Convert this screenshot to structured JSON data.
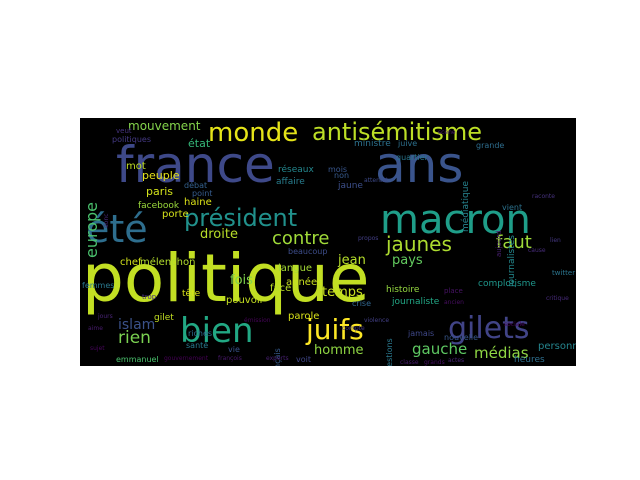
{
  "cloud": {
    "background": "#000000",
    "words": [
      {
        "text": "politique",
        "color": "#c2df23"
      },
      {
        "text": "france",
        "color": "#3e4989"
      },
      {
        "text": "ans",
        "color": "#3a548c"
      },
      {
        "text": "macron",
        "color": "#1f9e89"
      },
      {
        "text": "bien",
        "color": "#22a884"
      },
      {
        "text": "été",
        "color": "#2e6e8e"
      },
      {
        "text": "gilets",
        "color": "#414487"
      },
      {
        "text": "monde",
        "color": "#e5e419"
      },
      {
        "text": "antisémitisme",
        "color": "#bddf26"
      },
      {
        "text": "président",
        "color": "#21918c"
      },
      {
        "text": "juifs",
        "color": "#fde725"
      },
      {
        "text": "jaunes",
        "color": "#addc30"
      },
      {
        "text": "contre",
        "color": "#a0da39"
      },
      {
        "text": "faut",
        "color": "#9fda3a"
      },
      {
        "text": "rien",
        "color": "#7ad151"
      },
      {
        "text": "gauche",
        "color": "#5ec962"
      },
      {
        "text": "médias",
        "color": "#8fd744"
      },
      {
        "text": "europe",
        "color": "#4ac16d"
      },
      {
        "text": "islam",
        "color": "#3b528b"
      },
      {
        "text": "mouvement",
        "color": "#84d44b"
      },
      {
        "text": "droite",
        "color": "#b8de29"
      },
      {
        "text": "temps",
        "color": "#c8e020"
      },
      {
        "text": "homme",
        "color": "#90d743"
      },
      {
        "text": "pays",
        "color": "#63cb5f"
      },
      {
        "text": "jean",
        "color": "#b5de2b"
      },
      {
        "text": "fois",
        "color": "#7fd34e"
      },
      {
        "text": "état",
        "color": "#35b779"
      },
      {
        "text": "personnes",
        "color": "#25858e"
      },
      {
        "text": "peuple",
        "color": "#e7e419"
      },
      {
        "text": "paris",
        "color": "#d2e21b"
      },
      {
        "text": "mot",
        "color": "#c0df25"
      },
      {
        "text": "haine",
        "color": "#dde318"
      },
      {
        "text": "porte",
        "color": "#d5e21a"
      },
      {
        "text": "facebook",
        "color": "#9bd93c"
      },
      {
        "text": "mélenchon",
        "color": "#b2dd2d"
      },
      {
        "text": "années",
        "color": "#cae11f"
      },
      {
        "text": "langue",
        "color": "#a5db36"
      },
      {
        "text": "face",
        "color": "#bade28"
      },
      {
        "text": "histoire",
        "color": "#95d840"
      },
      {
        "text": "parole",
        "color": "#d8e219"
      },
      {
        "text": "pouvoir",
        "color": "#c5e021"
      },
      {
        "text": "tête",
        "color": "#dae319"
      },
      {
        "text": "gilet",
        "color": "#c2df23"
      },
      {
        "text": "chef",
        "color": "#d2e21b"
      },
      {
        "text": "femmes",
        "color": "#2a788e"
      },
      {
        "text": "emmanuel",
        "color": "#4ac16d"
      },
      {
        "text": "journaliste",
        "color": "#22a785"
      },
      {
        "text": "complotisme",
        "color": "#1f968b"
      },
      {
        "text": "questions",
        "color": "#2a788e"
      },
      {
        "text": "jamais",
        "color": "#3f4889"
      },
      {
        "text": "nouvelle",
        "color": "#38588c"
      },
      {
        "text": "heures",
        "color": "#2e6f8e"
      },
      {
        "text": "journalistes",
        "color": "#23898e"
      },
      {
        "text": "réseaux",
        "color": "#24878e"
      },
      {
        "text": "affaire",
        "color": "#287d8e"
      },
      {
        "text": "quartier",
        "color": "#2a768e"
      },
      {
        "text": "mois",
        "color": "#39568c"
      },
      {
        "text": "jaune",
        "color": "#3c4f8a"
      },
      {
        "text": "non",
        "color": "#375a8c"
      },
      {
        "text": "ministre",
        "color": "#2c718e"
      },
      {
        "text": "juive",
        "color": "#2d708e"
      },
      {
        "text": "médiatique",
        "color": "#26828e"
      },
      {
        "text": "grande",
        "color": "#2e6d8e"
      },
      {
        "text": "santé",
        "color": "#297a8e"
      },
      {
        "text": "riches",
        "color": "#2f6b8e"
      },
      {
        "text": "français",
        "color": "#375b8d"
      },
      {
        "text": "crise",
        "color": "#31668e"
      },
      {
        "text": "débat",
        "color": "#34608d"
      },
      {
        "text": "point",
        "color": "#365c8d"
      },
      {
        "text": "vie",
        "color": "#3a538b"
      },
      {
        "text": "voit",
        "color": "#404688"
      },
      {
        "text": "beaucoup",
        "color": "#3d4d8a"
      },
      {
        "text": "vient",
        "color": "#2c738e"
      },
      {
        "text": "twitter",
        "color": "#2b758e"
      },
      {
        "text": "politiques",
        "color": "#443983"
      },
      {
        "text": "veut",
        "color": "#46337f"
      },
      {
        "text": "trop",
        "color": "#472f7d"
      },
      {
        "text": "donc",
        "color": "#482878"
      },
      {
        "text": "jours",
        "color": "#482475"
      },
      {
        "text": "aujourd",
        "color": "#481f70"
      },
      {
        "text": "scène",
        "color": "#481a6c"
      },
      {
        "text": "place",
        "color": "#471365"
      },
      {
        "text": "ancien",
        "color": "#470e61"
      },
      {
        "text": "sociale",
        "color": "#46085c"
      },
      {
        "text": "émission",
        "color": "#450457"
      },
      {
        "text": "gouvernement",
        "color": "#440154"
      },
      {
        "text": "françois",
        "color": "#48186a"
      },
      {
        "text": "experts",
        "color": "#482071"
      },
      {
        "text": "critique",
        "color": "#472a7a"
      },
      {
        "text": "compte",
        "color": "#453781"
      },
      {
        "text": "violence",
        "color": "#423f85"
      },
      {
        "text": "attentat",
        "color": "#3e4a89"
      },
      {
        "text": "propos",
        "color": "#433e85"
      },
      {
        "text": "raconte",
        "color": "#46327e"
      },
      {
        "text": "actes",
        "color": "#482576"
      },
      {
        "text": "classe",
        "color": "#481b6d"
      },
      {
        "text": "grands",
        "color": "#471063"
      },
      {
        "text": "sujet",
        "color": "#450559"
      },
      {
        "text": "aime",
        "color": "#481c6e"
      },
      {
        "text": "cause",
        "color": "#472c7a"
      },
      {
        "text": "lien",
        "color": "#453882"
      }
    ]
  }
}
